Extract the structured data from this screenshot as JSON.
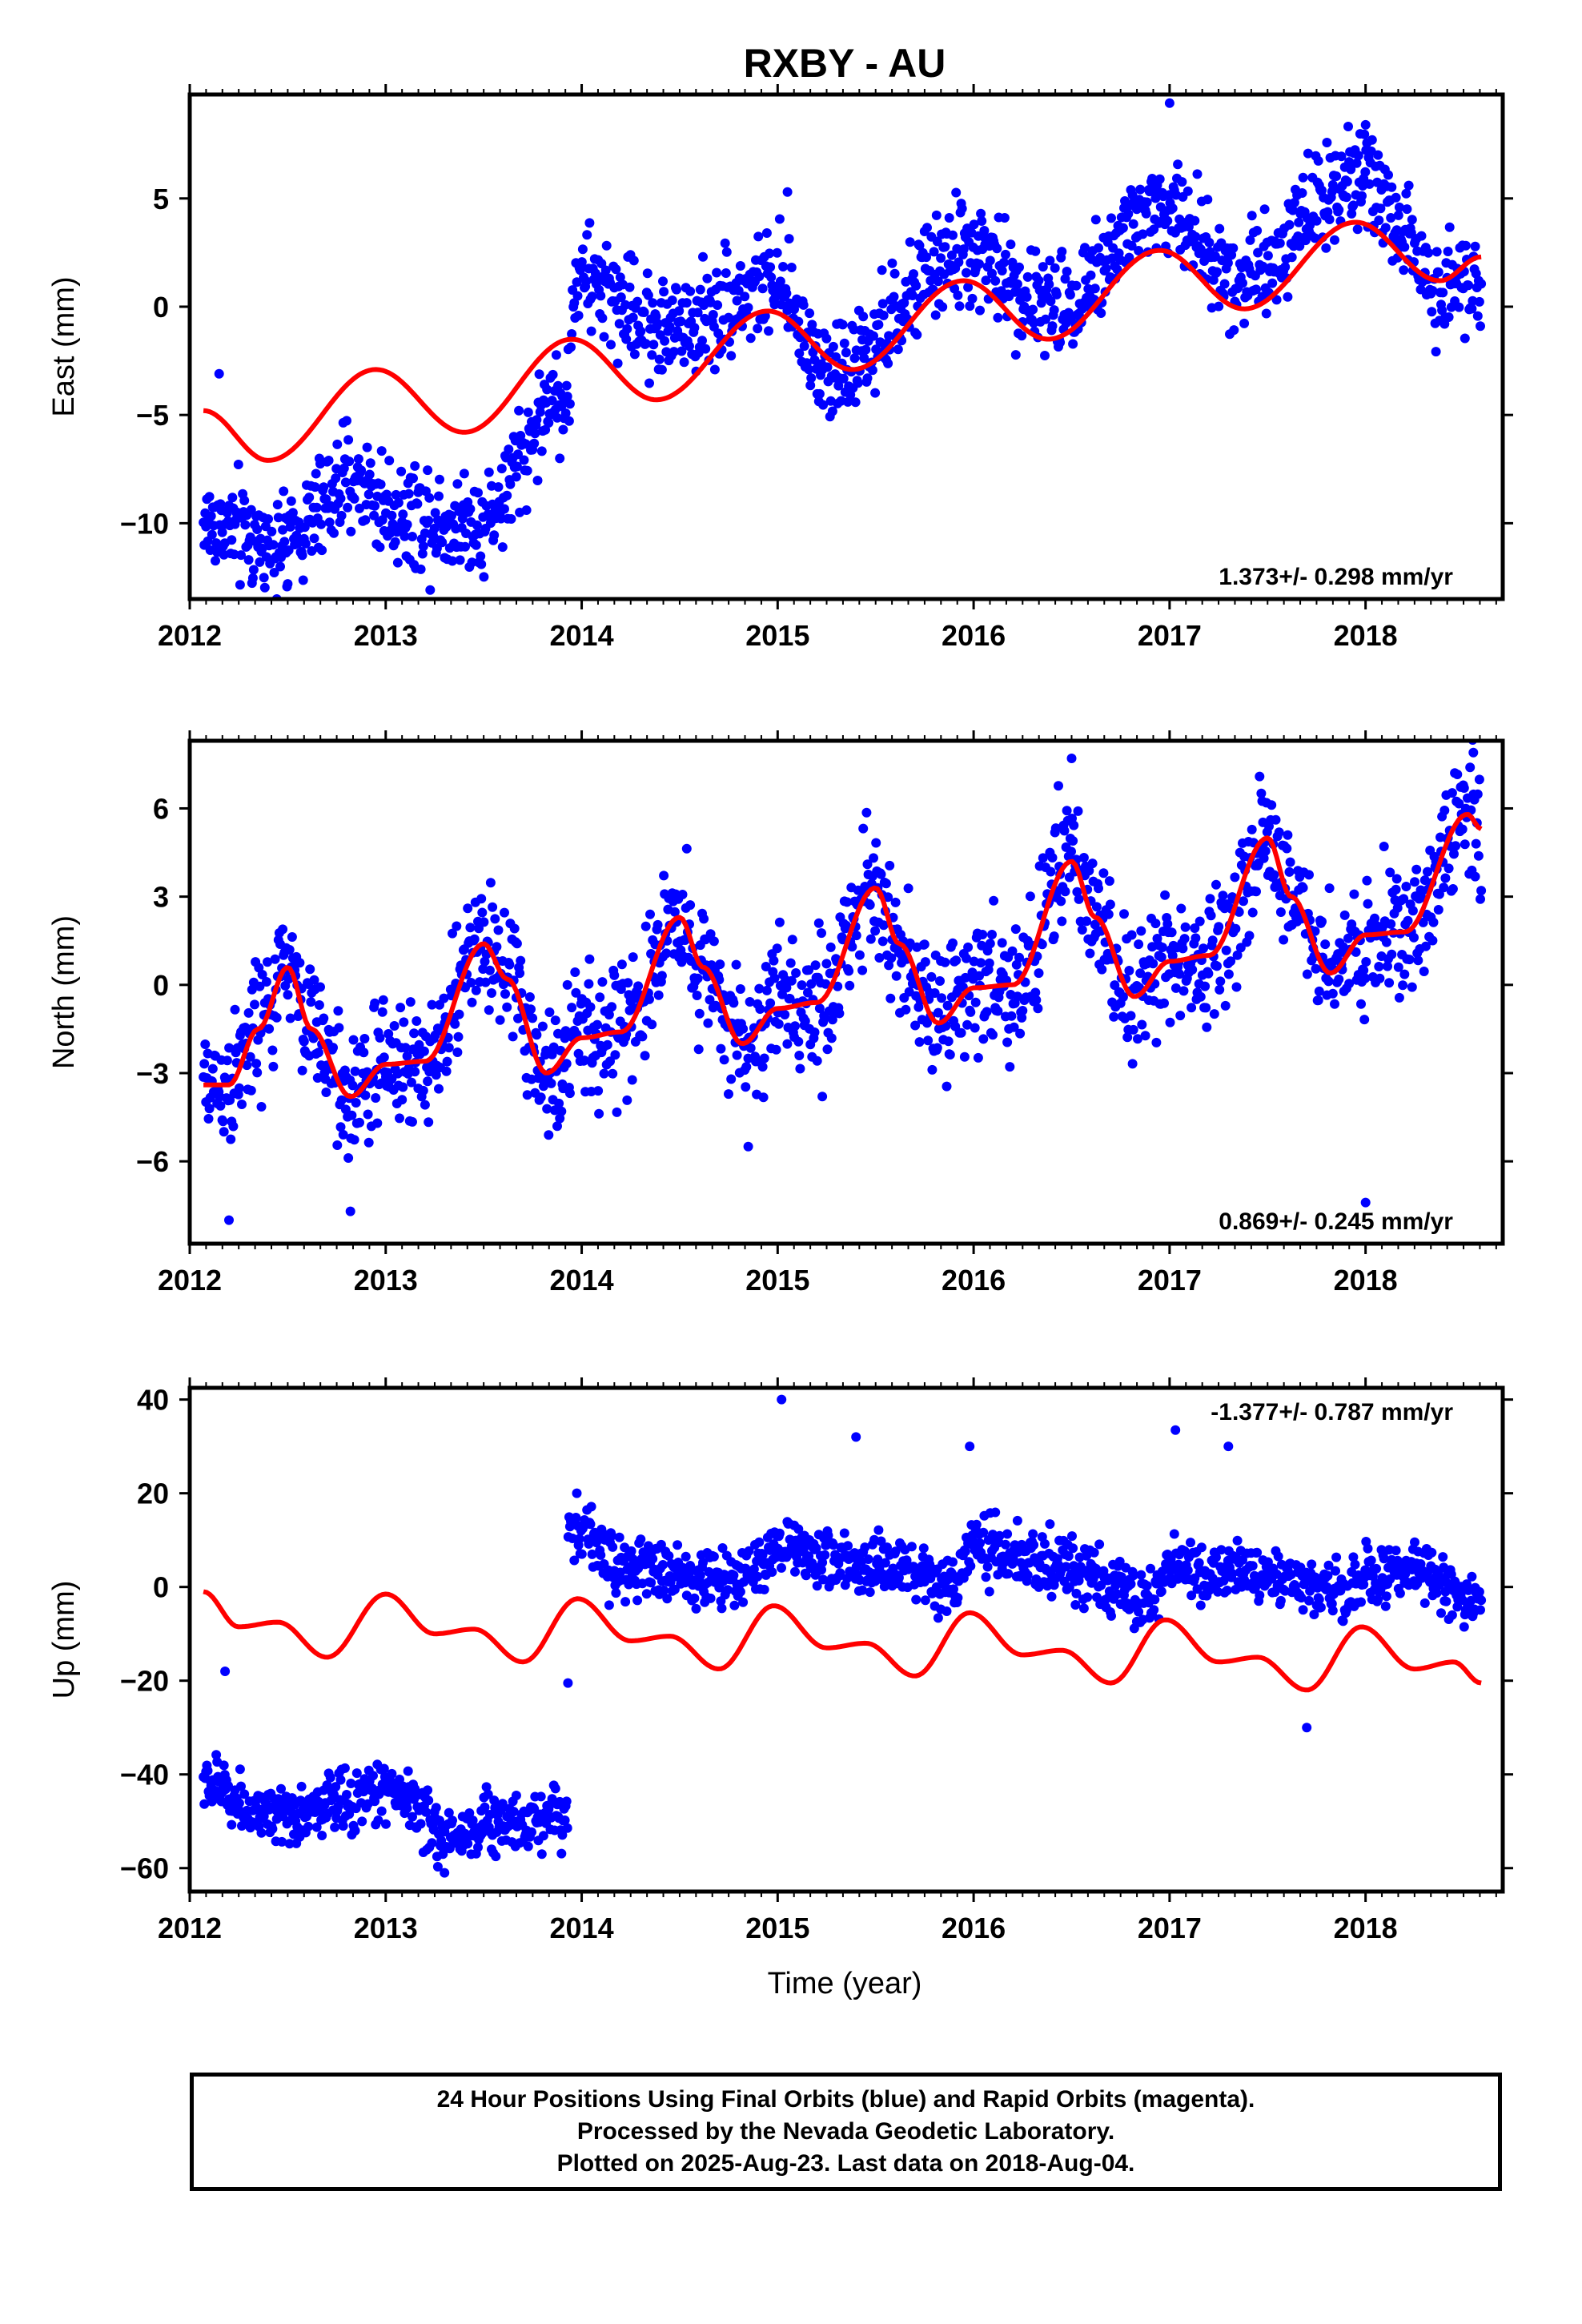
{
  "title": "RXBY - AU",
  "xlabel": "Time (year)",
  "colors": {
    "final_orbits": "#0000ff",
    "model": "#ff0000",
    "axes": "#000000"
  },
  "chart_data": [
    {
      "type": "scatter",
      "name": "east",
      "ylabel": "East (mm)",
      "xlim": [
        2012.0,
        2018.7
      ],
      "ylim": [
        -13.5,
        9.8
      ],
      "xticks": [
        2012,
        2013,
        2014,
        2015,
        2016,
        2017,
        2018
      ],
      "yticks": [
        -10,
        -5,
        0,
        5
      ],
      "ytick_labels": [
        "−10",
        "−5",
        "0",
        "5"
      ],
      "rate_label": "1.373+/- 0.298 mm/yr",
      "rate_position": "bottom-right",
      "data_span": [
        2012.07,
        2018.59
      ],
      "model_curve": [
        [
          2012.07,
          -4.8
        ],
        [
          2012.4,
          -7.1
        ],
        [
          2012.95,
          -2.9
        ],
        [
          2013.4,
          -5.8
        ],
        [
          2013.95,
          -1.5
        ],
        [
          2014.38,
          -4.3
        ],
        [
          2014.95,
          -0.2
        ],
        [
          2015.38,
          -2.9
        ],
        [
          2015.95,
          1.2
        ],
        [
          2016.38,
          -1.5
        ],
        [
          2016.95,
          2.6
        ],
        [
          2017.38,
          -0.1
        ],
        [
          2017.95,
          3.9
        ],
        [
          2018.38,
          1.2
        ],
        [
          2018.59,
          2.3
        ]
      ],
      "scatter_envelope": [
        [
          2012.07,
          -10.0
        ],
        [
          2012.45,
          -11.0
        ],
        [
          2012.85,
          -8.0
        ],
        [
          2013.05,
          -9.5
        ],
        [
          2013.45,
          -10.0
        ],
        [
          2013.93,
          -4.0
        ],
        [
          2013.97,
          1.3
        ],
        [
          2014.45,
          -1.0
        ],
        [
          2014.95,
          1.0
        ],
        [
          2015.3,
          -3.0
        ],
        [
          2015.95,
          2.5
        ],
        [
          2016.4,
          0.0
        ],
        [
          2016.95,
          4.5
        ],
        [
          2017.35,
          1.5
        ],
        [
          2017.95,
          6.0
        ],
        [
          2018.4,
          1.0
        ],
        [
          2018.59,
          1.5
        ]
      ],
      "scatter_spread": 1.3,
      "notable_points": [
        [
          2012.15,
          -3.1
        ],
        [
          2017.0,
          9.4
        ],
        [
          2018.0,
          8.4
        ],
        [
          2015.05,
          5.3
        ],
        [
          2012.5,
          -12.8
        ]
      ]
    },
    {
      "type": "scatter",
      "name": "north",
      "ylabel": "North (mm)",
      "xlim": [
        2012.0,
        2018.7
      ],
      "ylim": [
        -8.8,
        8.3
      ],
      "xticks": [
        2012,
        2013,
        2014,
        2015,
        2016,
        2017,
        2018
      ],
      "yticks": [
        -6,
        -3,
        0,
        3,
        6
      ],
      "ytick_labels": [
        "−6",
        "−3",
        "0",
        "3",
        "6"
      ],
      "rate_label": "0.869+/- 0.245 mm/yr",
      "rate_position": "bottom-right",
      "data_span": [
        2012.07,
        2018.59
      ],
      "model_curve": [
        [
          2012.07,
          -3.4
        ],
        [
          2012.2,
          -3.4
        ],
        [
          2012.35,
          -1.5
        ],
        [
          2012.5,
          0.6
        ],
        [
          2012.62,
          -1.5
        ],
        [
          2012.82,
          -3.8
        ],
        [
          2013.0,
          -2.7
        ],
        [
          2013.2,
          -2.6
        ],
        [
          2013.5,
          1.4
        ],
        [
          2013.62,
          0.2
        ],
        [
          2013.82,
          -3.0
        ],
        [
          2014.0,
          -1.8
        ],
        [
          2014.2,
          -1.6
        ],
        [
          2014.5,
          2.3
        ],
        [
          2014.62,
          0.6
        ],
        [
          2014.82,
          -2.0
        ],
        [
          2015.0,
          -0.8
        ],
        [
          2015.2,
          -0.6
        ],
        [
          2015.5,
          3.3
        ],
        [
          2015.62,
          1.4
        ],
        [
          2015.82,
          -1.3
        ],
        [
          2016.0,
          -0.1
        ],
        [
          2016.2,
          0.0
        ],
        [
          2016.5,
          4.2
        ],
        [
          2016.62,
          2.3
        ],
        [
          2016.82,
          -0.4
        ],
        [
          2017.0,
          0.8
        ],
        [
          2017.2,
          1.0
        ],
        [
          2017.5,
          5.0
        ],
        [
          2017.62,
          3.0
        ],
        [
          2017.82,
          0.4
        ],
        [
          2018.0,
          1.7
        ],
        [
          2018.2,
          1.8
        ],
        [
          2018.52,
          5.8
        ],
        [
          2018.59,
          5.3
        ]
      ],
      "scatter_envelope": [
        [
          2012.07,
          -3.4
        ],
        [
          2012.2,
          -3.4
        ],
        [
          2012.35,
          -1.5
        ],
        [
          2012.5,
          0.6
        ],
        [
          2012.62,
          -1.5
        ],
        [
          2012.82,
          -3.8
        ],
        [
          2013.0,
          -2.7
        ],
        [
          2013.2,
          -2.6
        ],
        [
          2013.5,
          1.4
        ],
        [
          2013.62,
          0.2
        ],
        [
          2013.82,
          -3.0
        ],
        [
          2014.0,
          -1.8
        ],
        [
          2014.2,
          -1.6
        ],
        [
          2014.5,
          2.3
        ],
        [
          2014.62,
          0.6
        ],
        [
          2014.82,
          -2.0
        ],
        [
          2015.0,
          -0.8
        ],
        [
          2015.2,
          -0.6
        ],
        [
          2015.5,
          3.3
        ],
        [
          2015.62,
          1.4
        ],
        [
          2015.82,
          -1.3
        ],
        [
          2016.0,
          -0.1
        ],
        [
          2016.2,
          0.0
        ],
        [
          2016.5,
          4.2
        ],
        [
          2016.62,
          2.3
        ],
        [
          2016.82,
          -0.4
        ],
        [
          2017.0,
          0.8
        ],
        [
          2017.2,
          1.0
        ],
        [
          2017.5,
          5.0
        ],
        [
          2017.62,
          3.0
        ],
        [
          2017.82,
          0.4
        ],
        [
          2018.0,
          1.7
        ],
        [
          2018.2,
          1.8
        ],
        [
          2018.52,
          5.8
        ],
        [
          2018.59,
          5.3
        ]
      ],
      "scatter_spread": 1.2,
      "notable_points": [
        [
          2012.2,
          -8.0
        ],
        [
          2018.0,
          -7.4
        ],
        [
          2016.5,
          7.7
        ],
        [
          2018.55,
          7.9
        ],
        [
          2012.82,
          -7.7
        ],
        [
          2014.85,
          -5.5
        ]
      ]
    },
    {
      "type": "scatter",
      "name": "up",
      "ylabel": "Up (mm)",
      "xlim": [
        2012.0,
        2018.7
      ],
      "ylim": [
        -65,
        42.5
      ],
      "xticks": [
        2012,
        2013,
        2014,
        2015,
        2016,
        2017,
        2018
      ],
      "yticks": [
        -60,
        -40,
        -20,
        0,
        20,
        40
      ],
      "ytick_labels": [
        "−60",
        "−40",
        "−20",
        "0",
        "20",
        "40"
      ],
      "rate_label": "-1.377+/- 0.787 mm/yr",
      "rate_position": "top-right",
      "data_span": [
        2012.07,
        2018.59
      ],
      "gap_at": 2013.93,
      "model_curve": [
        [
          2012.07,
          -1.0
        ],
        [
          2012.25,
          -8.5
        ],
        [
          2012.45,
          -7.5
        ],
        [
          2012.7,
          -15.0
        ],
        [
          2013.0,
          -1.5
        ],
        [
          2013.25,
          -10.0
        ],
        [
          2013.45,
          -9.0
        ],
        [
          2013.7,
          -16.0
        ],
        [
          2013.98,
          -2.5
        ],
        [
          2014.25,
          -11.5
        ],
        [
          2014.45,
          -10.5
        ],
        [
          2014.7,
          -17.5
        ],
        [
          2014.98,
          -4.0
        ],
        [
          2015.25,
          -13.0
        ],
        [
          2015.45,
          -12.0
        ],
        [
          2015.7,
          -19.0
        ],
        [
          2015.98,
          -5.5
        ],
        [
          2016.25,
          -14.5
        ],
        [
          2016.45,
          -13.5
        ],
        [
          2016.7,
          -20.5
        ],
        [
          2016.98,
          -7.0
        ],
        [
          2017.25,
          -16.0
        ],
        [
          2017.45,
          -15.0
        ],
        [
          2017.7,
          -22.0
        ],
        [
          2017.98,
          -8.5
        ],
        [
          2018.25,
          -17.5
        ],
        [
          2018.45,
          -16.0
        ],
        [
          2018.59,
          -20.5
        ]
      ],
      "scatter_envelope": [
        [
          2012.07,
          -42.0
        ],
        [
          2012.45,
          -50.0
        ],
        [
          2012.75,
          -46.0
        ],
        [
          2013.05,
          -43.0
        ],
        [
          2013.3,
          -53.0
        ],
        [
          2013.6,
          -50.0
        ],
        [
          2013.92,
          -48.0
        ],
        [
          2013.97,
          13.0
        ],
        [
          2014.2,
          4.0
        ],
        [
          2014.6,
          2.0
        ],
        [
          2014.9,
          3.0
        ],
        [
          2014.98,
          9.0
        ],
        [
          2015.5,
          4.0
        ],
        [
          2015.9,
          0.0
        ],
        [
          2015.98,
          8.0
        ],
        [
          2016.5,
          4.0
        ],
        [
          2016.9,
          -3.0
        ],
        [
          2017.0,
          4.0
        ],
        [
          2017.5,
          2.0
        ],
        [
          2017.9,
          -1.0
        ],
        [
          2018.0,
          2.0
        ],
        [
          2018.3,
          3.0
        ],
        [
          2018.59,
          -3.0
        ]
      ],
      "scatter_spread": 3.5,
      "notable_points": [
        [
          2015.02,
          40.0
        ],
        [
          2015.4,
          32.0
        ],
        [
          2015.98,
          30.0
        ],
        [
          2017.03,
          33.5
        ],
        [
          2017.3,
          30.0
        ],
        [
          2017.7,
          -30.0
        ],
        [
          2012.18,
          -18.0
        ],
        [
          2013.93,
          -20.5
        ],
        [
          2013.3,
          -61.0
        ]
      ]
    }
  ],
  "notes": [
    "24 Hour Positions Using Final Orbits (blue) and Rapid Orbits (magenta).",
    "Processed by the Nevada Geodetic Laboratory.",
    "Plotted on 2025-Aug-23. Last data on 2018-Aug-04."
  ]
}
